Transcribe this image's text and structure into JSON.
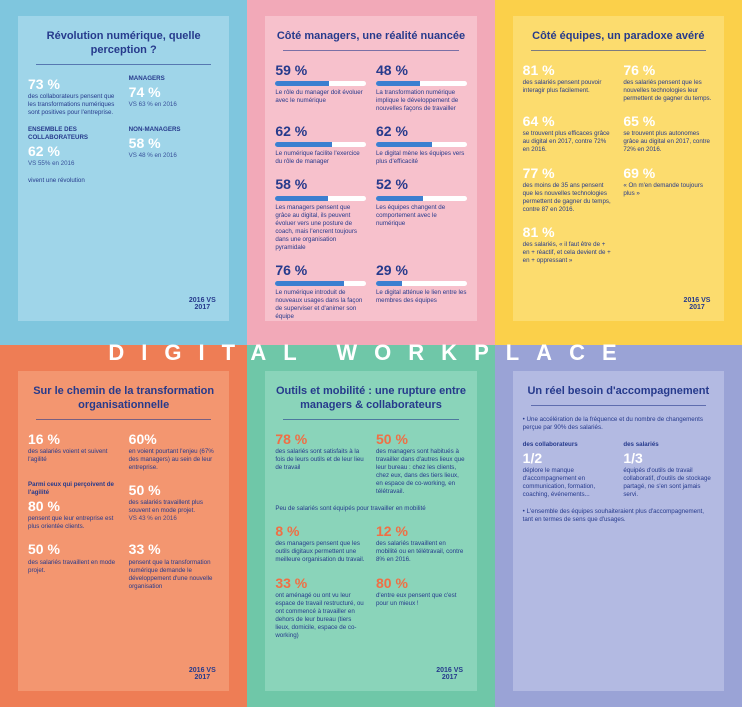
{
  "band": "DIGITAL WORKPLACE",
  "panels": [
    {
      "title": "Révolution numérique, quelle perception ?",
      "badge": "2016 VS 2017",
      "blocks": [
        {
          "stat": "73 %",
          "text": "des collaborateurs pensent que les transformations numériques sont positives pour l'entreprise."
        },
        {
          "stat": "74 %",
          "label": "MANAGERS",
          "sub": "VS 63 % en 2016"
        },
        {
          "stat": "62 %",
          "label": "ENSEMBLE DES COLLABORATEURS",
          "sub": "VS 55% en 2016"
        },
        {
          "stat": "58 %",
          "label": "NON-MANAGERS",
          "sub": "VS 48 % en 2016"
        },
        {
          "text": "vivent une révolution"
        }
      ]
    },
    {
      "title": "Côté managers, une réalité nuancée",
      "blocks": [
        {
          "pct": 59,
          "stat": "59 %",
          "text": "Le rôle du manager doit évoluer avec le numérique"
        },
        {
          "pct": 48,
          "stat": "48 %",
          "text": "La transformation numérique implique le développement de nouvelles façons de travailler"
        },
        {
          "pct": 62,
          "stat": "62 %",
          "text": "Le numérique facilite l'exercice du rôle de manager"
        },
        {
          "pct": 62,
          "stat": "62 %",
          "text": "Le digital mène les équipes vers plus d'efficacité"
        },
        {
          "pct": 58,
          "stat": "58 %",
          "text": "Les managers pensent que grâce au digital, ils peuvent évoluer vers une posture de coach, mais l'encrent toujours dans une organisation pyramidale"
        },
        {
          "pct": 52,
          "stat": "52 %",
          "text": "Les équipes changent de comportement avec le numérique"
        },
        {
          "pct": 76,
          "stat": "76 %",
          "text": "Le numérique introduit de nouveaux usages dans la façon de superviser et d'animer son équipe"
        },
        {
          "pct": 29,
          "stat": "29 %",
          "text": "Le digital atténue le lien entre les membres des équipes"
        }
      ]
    },
    {
      "title": "Côté équipes, un paradoxe avéré",
      "badge": "2016 VS 2017",
      "blocks": [
        {
          "stat": "81 %",
          "text": "des salariés pensent pouvoir interagir plus facilement."
        },
        {
          "stat": "76 %",
          "text": "des salariés pensent que les nouvelles technologies leur permettent de gagner du temps."
        },
        {
          "stat": "64 %",
          "text": "se trouvent plus efficaces grâce au digital en 2017, contre 72% en 2016."
        },
        {
          "stat": "65 %",
          "text": "se trouvent plus autonomes grâce au digital en 2017, contre 72% en 2016."
        },
        {
          "stat": "77 %",
          "text": "des moins de 35 ans pensent que les nouvelles technologies permettent de gagner du temps, contre 87 en 2016."
        },
        {
          "stat": "69 %",
          "text": "« On m'en demande toujours plus »"
        },
        {
          "stat": "81 %",
          "text": "des salariés, « il faut être de + en + réactif, et cela devient de + en + oppressant »"
        }
      ]
    },
    {
      "title": "Sur le chemin de la transformation organisationnelle",
      "badge": "2016 VS 2017",
      "blocks": [
        {
          "stat": "16 %",
          "text": "des salariés voient et suivent l'agilité"
        },
        {
          "stat": "60%",
          "text": "en voient pourtant l'enjeu (67% des managers) au sein de leur entreprise."
        },
        {
          "stat": "80 %",
          "label": "Parmi ceux qui perçoivent de l'agilité",
          "text": "pensent que leur entreprise est plus orientée clients."
        },
        {
          "stat": "50 %",
          "text": "des salariés travaillent plus souvent en mode projet.",
          "sub": "VS 43 % en 2016"
        },
        {
          "stat": "50 %",
          "text": "des salariés travaillent en mode projet."
        },
        {
          "stat": "33 %",
          "text": "pensent que la transformation numérique demande le développement d'une nouvelle organisation"
        }
      ]
    },
    {
      "title": "Outils et mobilité : une rupture entre managers & collaborateurs",
      "badge": "2016 VS 2017",
      "blocks": [
        {
          "stat": "78 %",
          "text": "des salariés sont satisfaits à la fois de leurs outils et de leur lieu de travail"
        },
        {
          "stat": "50 %",
          "text": "des managers sont habitués à travailler dans d'autres lieux que leur bureau : chez les clients, chez eux, dans des tiers lieux, en espace de co-working, en télétravail."
        },
        {
          "text": "Peu de salariés sont équipés pour travailler en mobilité"
        },
        {
          "stat": "8 %",
          "text": "des managers pensent que les outils digitaux permettent une meilleure organisation du travail."
        },
        {
          "stat": "12 %",
          "text": "des salariés travaillent en mobilité ou en télétravail, contre 8% en 2016."
        },
        {
          "stat": "33 %",
          "text": "ont aménagé ou ont vu leur espace de travail restructuré, ou ont commencé à travailler en dehors de leur bureau (tiers lieux, domicile, espace de co-working)"
        },
        {
          "stat": "80 %",
          "text": "d'entre eux pensent que c'est pour un mieux !"
        }
      ]
    },
    {
      "title": "Un réel besoin d'accompagnement",
      "blocks": [
        {
          "text": "• Une accélération de la fréquence et du nombre de changements perçue par 90% des salariés."
        },
        {
          "stat": "1/2",
          "label": "des collaborateurs",
          "text": "déplore le manque d'accompagnement en communication, formation, coaching, événements..."
        },
        {
          "stat": "1/3",
          "label": "des salariés",
          "text": "équipés d'outils de travail collaboratif, d'outils de stockage partagé, ne s'en sont jamais servi."
        },
        {
          "text": "• L'ensemble des équipes souhaiteraient plus d'accompagnement, tant en termes de sens que d'usages."
        }
      ]
    }
  ]
}
